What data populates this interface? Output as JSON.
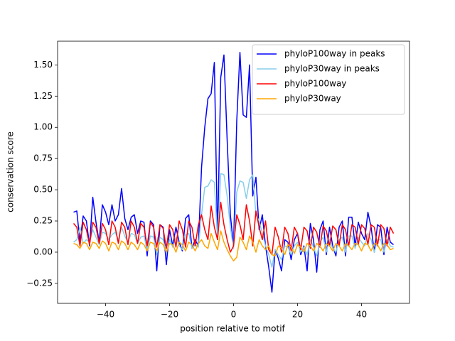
{
  "chart_data": {
    "type": "line",
    "xlabel": "position relative to motif",
    "ylabel": "conservation score",
    "x": [
      -50,
      -49,
      -48,
      -47,
      -46,
      -45,
      -44,
      -43,
      -42,
      -41,
      -40,
      -39,
      -38,
      -37,
      -36,
      -35,
      -34,
      -33,
      -32,
      -31,
      -30,
      -29,
      -28,
      -27,
      -26,
      -25,
      -24,
      -23,
      -22,
      -21,
      -20,
      -19,
      -18,
      -17,
      -16,
      -15,
      -14,
      -13,
      -12,
      -11,
      -10,
      -9,
      -8,
      -7,
      -6,
      -5,
      -4,
      -3,
      -2,
      -1,
      0,
      1,
      2,
      3,
      4,
      5,
      6,
      7,
      8,
      9,
      10,
      11,
      12,
      13,
      14,
      15,
      16,
      17,
      18,
      19,
      20,
      21,
      22,
      23,
      24,
      25,
      26,
      27,
      28,
      29,
      30,
      31,
      32,
      33,
      34,
      35,
      36,
      37,
      38,
      39,
      40,
      41,
      42,
      43,
      44,
      45,
      46,
      47,
      48,
      49,
      50
    ],
    "series": [
      {
        "name": "phyloP100way in peaks",
        "color": "#0000ff",
        "values": [
          0.32,
          0.33,
          0.08,
          0.29,
          0.25,
          0.05,
          0.44,
          0.24,
          0.08,
          0.38,
          0.32,
          0.22,
          0.38,
          0.25,
          0.3,
          0.51,
          0.27,
          0.18,
          0.28,
          0.3,
          0.15,
          0.25,
          0.24,
          -0.03,
          0.25,
          0.22,
          -0.15,
          0.22,
          0.2,
          -0.1,
          0.18,
          0.05,
          0.2,
          0.08,
          0.01,
          0.27,
          0.3,
          0.03,
          0.1,
          0.05,
          0.68,
          1.0,
          1.23,
          1.27,
          1.52,
          0.1,
          1.4,
          1.58,
          0.9,
          0.3,
          0.05,
          1.05,
          1.6,
          1.1,
          1.08,
          1.5,
          0.45,
          0.6,
          0.18,
          0.3,
          0.05,
          -0.12,
          -0.32,
          0.02,
          -0.05,
          -0.15,
          0.1,
          0.08,
          -0.06,
          0.1,
          0.15,
          -0.02,
          0.05,
          -0.15,
          0.23,
          0.1,
          -0.16,
          0.18,
          0.25,
          -0.02,
          0.2,
          0.05,
          -0.03,
          0.2,
          0.25,
          -0.03,
          0.28,
          0.28,
          0.05,
          0.24,
          0.15,
          0.1,
          0.32,
          0.2,
          0.0,
          0.22,
          0.2,
          -0.02,
          0.2,
          0.08,
          0.06
        ]
      },
      {
        "name": "phyloP30way in peaks",
        "color": "#87ceeb",
        "values": [
          0.08,
          0.1,
          0.2,
          0.07,
          0.1,
          0.08,
          0.18,
          0.12,
          0.06,
          0.16,
          0.15,
          0.1,
          0.14,
          0.16,
          0.1,
          0.2,
          0.13,
          0.08,
          0.15,
          0.14,
          0.07,
          0.12,
          0.13,
          0.02,
          0.13,
          0.12,
          -0.02,
          0.12,
          0.1,
          -0.01,
          0.1,
          0.04,
          0.12,
          0.05,
          0.02,
          0.14,
          0.15,
          0.03,
          0.06,
          0.04,
          0.3,
          0.52,
          0.53,
          0.58,
          0.56,
          0.1,
          0.63,
          0.62,
          0.45,
          0.2,
          0.03,
          0.48,
          0.57,
          0.56,
          0.43,
          0.58,
          0.62,
          0.3,
          0.25,
          0.15,
          0.05,
          -0.02,
          -0.12,
          0.02,
          -0.02,
          -0.06,
          0.05,
          0.04,
          -0.02,
          0.05,
          0.08,
          0.0,
          0.04,
          -0.02,
          0.1,
          0.04,
          -0.03,
          0.08,
          0.12,
          0.0,
          0.1,
          0.03,
          0.0,
          0.1,
          0.12,
          0.0,
          0.13,
          0.13,
          0.03,
          0.12,
          0.08,
          0.05,
          0.15,
          0.1,
          0.0,
          0.1,
          0.1,
          0.0,
          0.1,
          0.05,
          0.04
        ]
      },
      {
        "name": "phyloP100way",
        "color": "#ff0000",
        "values": [
          0.23,
          0.2,
          0.05,
          0.24,
          0.18,
          0.06,
          0.24,
          0.2,
          0.07,
          0.23,
          0.18,
          0.06,
          0.25,
          0.2,
          0.07,
          0.24,
          0.2,
          0.06,
          0.25,
          0.2,
          0.07,
          0.23,
          0.2,
          0.05,
          0.24,
          0.2,
          0.04,
          0.22,
          0.19,
          0.03,
          0.22,
          0.18,
          0.04,
          0.25,
          0.18,
          0.04,
          0.25,
          0.2,
          0.05,
          0.22,
          0.3,
          0.18,
          0.1,
          0.37,
          0.2,
          0.1,
          0.4,
          0.22,
          0.1,
          0.0,
          0.05,
          0.3,
          0.22,
          0.1,
          0.38,
          0.25,
          0.05,
          0.33,
          0.2,
          0.1,
          0.25,
          0.02,
          -0.02,
          0.2,
          0.12,
          0.0,
          0.2,
          0.15,
          0.01,
          0.2,
          0.15,
          0.02,
          0.2,
          0.17,
          0.03,
          0.2,
          0.16,
          0.04,
          0.21,
          0.17,
          0.05,
          0.21,
          0.18,
          0.05,
          0.22,
          0.18,
          0.05,
          0.22,
          0.2,
          0.06,
          0.22,
          0.19,
          0.06,
          0.22,
          0.2,
          0.05,
          0.22,
          0.19,
          0.05,
          0.2,
          0.15
        ]
      },
      {
        "name": "phyloP30way",
        "color": "#ffa500",
        "values": [
          0.07,
          0.06,
          0.03,
          0.08,
          0.07,
          0.02,
          0.08,
          0.07,
          0.03,
          0.09,
          0.07,
          0.01,
          0.08,
          0.07,
          0.02,
          0.09,
          0.07,
          0.02,
          0.08,
          0.06,
          0.02,
          0.08,
          0.06,
          0.01,
          0.08,
          0.07,
          0.01,
          0.08,
          0.06,
          0.0,
          0.07,
          0.06,
          0.0,
          0.08,
          0.06,
          0.01,
          0.08,
          0.06,
          0.01,
          0.07,
          0.1,
          0.05,
          0.03,
          0.15,
          0.08,
          0.02,
          0.17,
          0.08,
          0.02,
          -0.03,
          -0.07,
          -0.04,
          0.12,
          0.08,
          0.02,
          0.13,
          0.08,
          0.0,
          0.1,
          0.05,
          0.02,
          0.05,
          -0.02,
          -0.03,
          0.05,
          0.03,
          -0.02,
          0.06,
          0.04,
          -0.01,
          0.06,
          0.04,
          0.0,
          0.07,
          0.05,
          0.01,
          0.07,
          0.05,
          0.01,
          0.07,
          0.05,
          0.01,
          0.07,
          0.05,
          0.01,
          0.07,
          0.05,
          0.02,
          0.07,
          0.06,
          0.01,
          0.07,
          0.06,
          0.01,
          0.07,
          0.06,
          0.01,
          0.07,
          0.06,
          0.02,
          0.03
        ]
      }
    ],
    "xlim": [
      -55,
      55
    ],
    "ylim": [
      -0.41,
      1.69
    ],
    "xticks": [
      {
        "value": -40,
        "label": "−40"
      },
      {
        "value": -20,
        "label": "−20"
      },
      0,
      20,
      40
    ],
    "yticks": [
      {
        "value": -0.25,
        "label": "−0.25"
      },
      {
        "value": 0,
        "label": "0.00"
      },
      {
        "value": 0.25,
        "label": "0.25"
      },
      {
        "value": 0.5,
        "label": "0.50"
      },
      {
        "value": 0.75,
        "label": "0.75"
      },
      {
        "value": 1,
        "label": "1.00"
      },
      {
        "value": 1.25,
        "label": "1.25"
      },
      {
        "value": 1.5,
        "label": "1.50"
      }
    ],
    "legend": "upper right"
  }
}
